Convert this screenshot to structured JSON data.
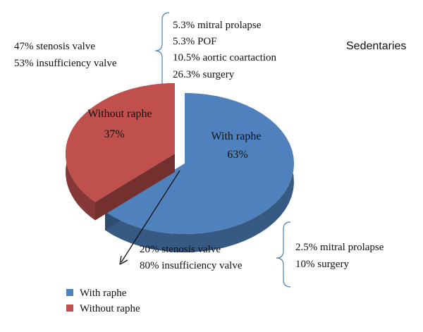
{
  "chart_data": {
    "type": "pie",
    "title": "Sedentaries",
    "slices": [
      {
        "label": "With raphe",
        "value": 63,
        "value_label": "63%",
        "color": "#4f81bd"
      },
      {
        "label": "Without raphe",
        "value": 37,
        "value_label": "37%",
        "color": "#c0504d"
      }
    ],
    "legend": {
      "position": "bottom-left",
      "items": [
        "With raphe",
        "Without raphe"
      ]
    },
    "annotations": {
      "without_raphe_valve": [
        "47% stenosis valve",
        "53% insufficiency valve"
      ],
      "without_raphe_associated": [
        "5.3% mitral prolapse",
        "5.3% POF",
        "10.5% aortic coartaction",
        "26.3% surgery"
      ],
      "with_raphe_valve": [
        "20% stenosis valve",
        "80% insufficiency valve"
      ],
      "with_raphe_associated": [
        "2.5% mitral prolapse",
        "10% surgery"
      ]
    }
  }
}
